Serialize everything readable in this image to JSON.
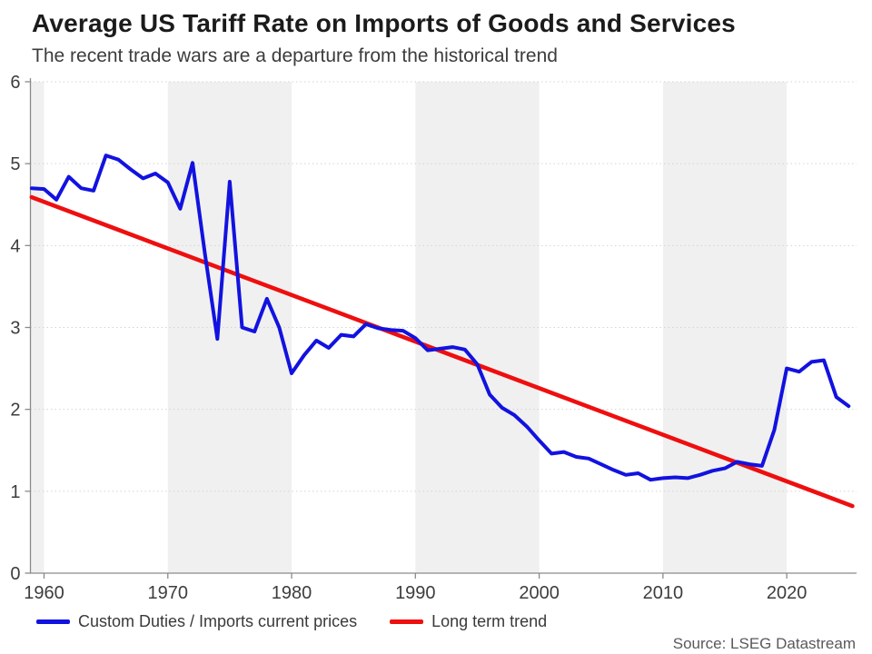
{
  "header": {
    "title": "Average US Tariff Rate on Imports of Goods and Services",
    "subtitle": "The recent trade wars are a departure from the historical trend"
  },
  "legend": [
    {
      "label": "Custom Duties / Imports current prices",
      "color": "#1212e0"
    },
    {
      "label": "Long term trend",
      "color": "#ee0f0f"
    }
  ],
  "source": "Source: LSEG Datastream",
  "chart_data": {
    "type": "line",
    "title": "Average US Tariff Rate on Imports of Goods and Services",
    "subtitle": "The recent trade wars are a departure from the historical trend",
    "xlabel": "",
    "ylabel": "",
    "x_ticks": [
      1960,
      1970,
      1980,
      1990,
      2000,
      2010,
      2020
    ],
    "y_ticks": [
      0,
      1,
      2,
      3,
      4,
      5,
      6
    ],
    "xlim": [
      1958.9,
      2025.64
    ],
    "ylim": [
      0,
      6
    ],
    "grid": "dotted horizontal",
    "legend_position": "bottom",
    "band_color": "#f0f0f0",
    "grid_color": "#d4d4d4",
    "axis_color": "#8a8a8a",
    "tick_text_color": "#3d3d3d",
    "shaded_decades": [
      [
        1950,
        1960
      ],
      [
        1970,
        1980
      ],
      [
        1990,
        2000
      ],
      [
        2010,
        2020
      ]
    ],
    "series": [
      {
        "name": "Custom Duties / Imports current prices",
        "color": "#1212e0",
        "width": 4,
        "x": [
          1959,
          1960,
          1961,
          1962,
          1963,
          1964,
          1965,
          1966,
          1967,
          1968,
          1969,
          1970,
          1971,
          1972,
          1973,
          1974,
          1975,
          1976,
          1977,
          1978,
          1979,
          1980,
          1981,
          1982,
          1983,
          1984,
          1985,
          1986,
          1987,
          1988,
          1989,
          1990,
          1991,
          1992,
          1993,
          1994,
          1995,
          1996,
          1997,
          1998,
          1999,
          2000,
          2001,
          2002,
          2003,
          2004,
          2005,
          2006,
          2007,
          2008,
          2009,
          2010,
          2011,
          2012,
          2013,
          2014,
          2015,
          2016,
          2017,
          2018,
          2019,
          2020,
          2021,
          2022,
          2023,
          2024,
          2025
        ],
        "values": [
          4.7,
          4.69,
          4.56,
          4.84,
          4.7,
          4.67,
          5.1,
          5.05,
          4.93,
          4.82,
          4.88,
          4.77,
          4.45,
          5.01,
          3.9,
          2.86,
          4.78,
          3.0,
          2.95,
          3.35,
          3.0,
          2.44,
          2.66,
          2.84,
          2.75,
          2.91,
          2.89,
          3.04,
          2.99,
          2.97,
          2.96,
          2.87,
          2.72,
          2.74,
          2.76,
          2.73,
          2.55,
          2.18,
          2.02,
          1.93,
          1.79,
          1.62,
          1.46,
          1.48,
          1.42,
          1.4,
          1.33,
          1.26,
          1.2,
          1.22,
          1.14,
          1.16,
          1.17,
          1.16,
          1.2,
          1.25,
          1.28,
          1.36,
          1.33,
          1.31,
          1.75,
          2.5,
          2.46,
          2.58,
          2.6,
          2.15,
          2.04
        ]
      },
      {
        "name": "Long term trend",
        "color": "#ee0f0f",
        "width": 4.6,
        "x": [
          1959,
          2025.3
        ],
        "values": [
          4.59,
          0.82
        ]
      }
    ],
    "source": "Source: LSEG Datastream"
  }
}
